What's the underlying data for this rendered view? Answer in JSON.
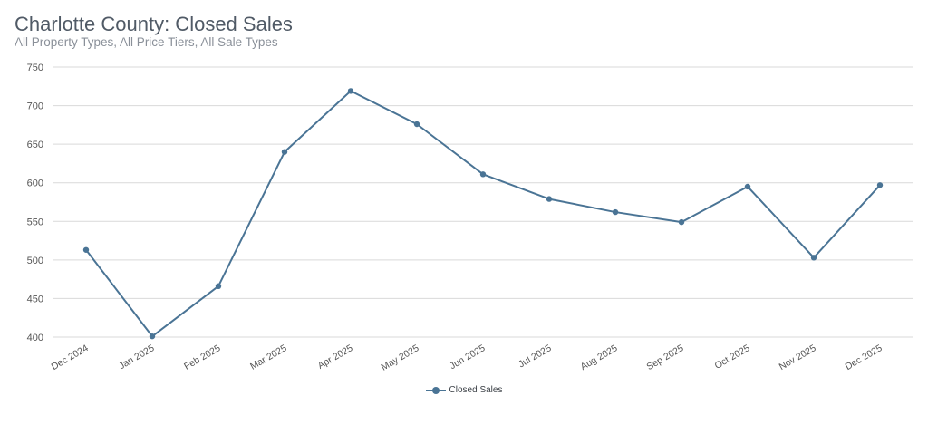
{
  "header": {
    "title": "Charlotte County: Closed Sales",
    "subtitle": "All Property Types, All Price Tiers, All Sale Types"
  },
  "colors": {
    "series": "#4a7495",
    "grid": "#d9d9d9",
    "axis_text": "#555555"
  },
  "chart_data": {
    "type": "line",
    "title": "Charlotte County: Closed Sales",
    "subtitle": "All Property Types, All Price Tiers, All Sale Types",
    "xlabel": "",
    "ylabel": "",
    "categories": [
      "Dec 2024",
      "Jan 2025",
      "Feb 2025",
      "Mar 2025",
      "Apr 2025",
      "May 2025",
      "Jun 2025",
      "Jul 2025",
      "Aug 2025",
      "Sep 2025",
      "Oct 2025",
      "Nov 2025",
      "Dec 2025"
    ],
    "series": [
      {
        "name": "Closed Sales",
        "values": [
          513,
          401,
          466,
          640,
          719,
          676,
          611,
          579,
          562,
          549,
          595,
          503,
          597
        ]
      }
    ],
    "ylim": [
      400,
      750
    ],
    "yticks": [
      400,
      450,
      500,
      550,
      600,
      650,
      700,
      750
    ],
    "grid": true,
    "legend": "bottom-center"
  }
}
